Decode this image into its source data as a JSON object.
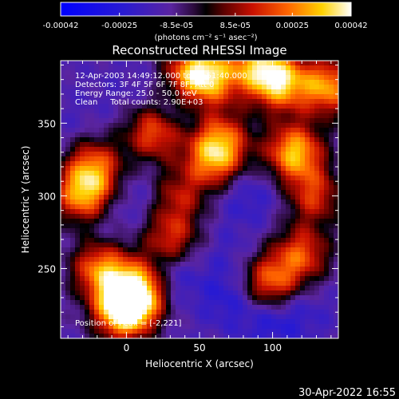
{
  "colorbar": {
    "tick_labels": [
      "-0.00042",
      "-0.00025",
      "-8.5e-05",
      "8.5e-05",
      "0.00025",
      "0.00042"
    ],
    "unit_label": "(photons cm⁻² s⁻¹ asec⁻²)",
    "min": -0.00042,
    "max": 0.00042
  },
  "plot": {
    "title": "Reconstructed RHESSI Image",
    "xlabel": "Heliocentric X (arcsec)",
    "ylabel": "Heliocentric Y (arcsec)",
    "x_ticks": [
      "0",
      "50",
      "100"
    ],
    "y_ticks": [
      "250",
      "300",
      "350"
    ],
    "xlim": [
      -45,
      145
    ],
    "ylim": [
      202,
      393
    ],
    "info_lines": [
      "12-Apr-2003 14:49:12.000 to 14:51:40.000",
      "Detectors: 3F 4F 5F 6F 7F 8F, Att 0",
      "Energy Range: 25.0 - 50.0 keV",
      "Clean     Total counts: 2.90E+03"
    ],
    "peak_label": "Position of Peak = [-2,221]"
  },
  "timestamp": "30-Apr-2022 16:55",
  "chart_data": {
    "type": "heatmap",
    "title": "Reconstructed RHESSI Image",
    "xlabel": "Heliocentric X (arcsec)",
    "ylabel": "Heliocentric Y (arcsec)",
    "xlim": [
      -45,
      145
    ],
    "ylim": [
      202,
      393
    ],
    "colorbar_range": [
      -0.00042,
      0.00042
    ],
    "colormap": "blue-purple-red-yellow-white",
    "blobs": [
      {
        "x": -2,
        "y": 221,
        "value": 0.00042
      },
      {
        "x": 8,
        "y": 235,
        "value": 0.00034
      },
      {
        "x": -18,
        "y": 250,
        "value": 0.00024
      },
      {
        "x": -30,
        "y": 300,
        "value": 0.00026
      },
      {
        "x": -22,
        "y": 320,
        "value": 0.0002
      },
      {
        "x": 20,
        "y": 345,
        "value": 0.00026
      },
      {
        "x": 45,
        "y": 385,
        "value": 0.00022
      },
      {
        "x": 58,
        "y": 380,
        "value": 0.00018
      },
      {
        "x": 60,
        "y": 325,
        "value": 0.00022
      },
      {
        "x": 65,
        "y": 340,
        "value": 0.00014
      },
      {
        "x": 115,
        "y": 330,
        "value": 0.00032
      },
      {
        "x": 105,
        "y": 378,
        "value": 0.0003
      },
      {
        "x": 138,
        "y": 375,
        "value": 0.00027
      },
      {
        "x": 88,
        "y": 390,
        "value": 0.0002
      },
      {
        "x": 98,
        "y": 240,
        "value": 0.00022
      },
      {
        "x": 120,
        "y": 260,
        "value": 0.00018
      },
      {
        "x": 30,
        "y": 270,
        "value": 0.00015
      },
      {
        "x": 35,
        "y": 300,
        "value": 0.0001
      },
      {
        "x": 128,
        "y": 300,
        "value": 0.00016
      },
      {
        "x": 10,
        "y": 300,
        "value": -0.0002
      },
      {
        "x": 30,
        "y": 245,
        "value": -0.00026
      },
      {
        "x": 70,
        "y": 230,
        "value": -0.00024
      },
      {
        "x": 98,
        "y": 215,
        "value": -0.00025
      },
      {
        "x": 120,
        "y": 220,
        "value": -0.0002
      },
      {
        "x": -15,
        "y": 280,
        "value": -0.00018
      },
      {
        "x": 82,
        "y": 300,
        "value": -0.00022
      },
      {
        "x": 110,
        "y": 300,
        "value": -0.00016
      },
      {
        "x": 30,
        "y": 355,
        "value": -0.00026
      },
      {
        "x": 0,
        "y": 370,
        "value": -0.00016
      },
      {
        "x": -35,
        "y": 350,
        "value": -0.00016
      },
      {
        "x": 70,
        "y": 260,
        "value": -0.00018
      },
      {
        "x": 55,
        "y": 360,
        "value": -0.00014
      }
    ]
  }
}
